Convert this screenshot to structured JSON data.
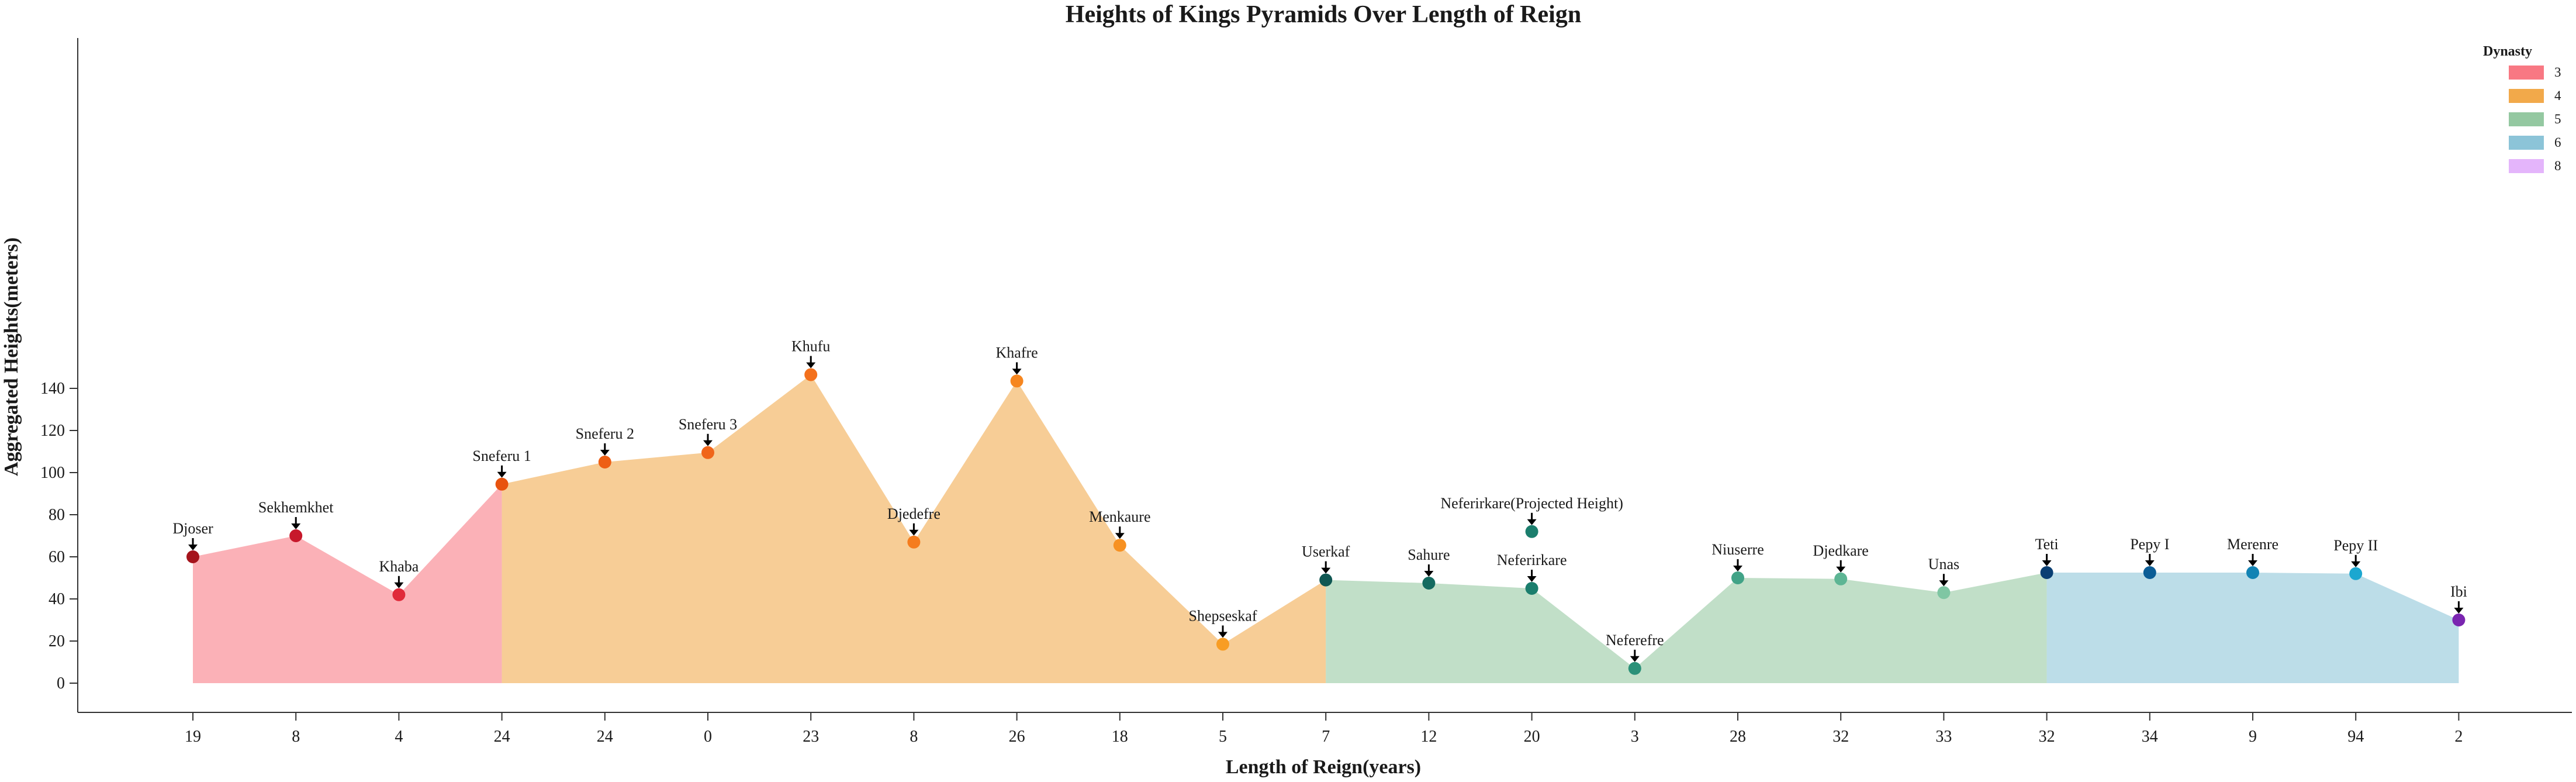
{
  "chart_data": {
    "type": "area",
    "title": "Heights of Kings Pyramids Over Length of Reign",
    "xlabel": "Length of Reign(years)",
    "ylabel": "Aggregated Heights(meters)",
    "ylim": [
      -7,
      155
    ],
    "yticks": [
      0,
      20,
      40,
      60,
      80,
      100,
      120,
      140
    ],
    "grid": false,
    "legend": {
      "title": "Dynasty",
      "placement": "top-right",
      "items": [
        {
          "label": "3",
          "color": "#f87883"
        },
        {
          "label": "4",
          "color": "#f2a94a"
        },
        {
          "label": "5",
          "color": "#94c8a1"
        },
        {
          "label": "6",
          "color": "#8cc4d8"
        },
        {
          "label": "8",
          "color": "#e4b5fb"
        }
      ]
    },
    "points": [
      {
        "name": "Djoser",
        "x": "19",
        "y": 60,
        "dynasty": "3",
        "color": "#a5141c"
      },
      {
        "name": "Sekhemkhet",
        "x": "8",
        "y": 70,
        "dynasty": "3",
        "color": "#c7182b"
      },
      {
        "name": "Khaba",
        "x": "4",
        "y": 42,
        "dynasty": "3",
        "color": "#e02a3a"
      },
      {
        "name": "Sneferu 1",
        "x": "24",
        "y": 94.5,
        "dynasty": "4",
        "color": "#e8530f"
      },
      {
        "name": "Sneferu 2",
        "x": "24",
        "y": 105,
        "dynasty": "4",
        "color": "#ee5f14"
      },
      {
        "name": "Sneferu 3",
        "x": "0",
        "y": 109.5,
        "dynasty": "4",
        "color": "#f0651a"
      },
      {
        "name": "Khufu",
        "x": "23",
        "y": 146.5,
        "dynasty": "4",
        "color": "#f3701c"
      },
      {
        "name": "Djedefre",
        "x": "8",
        "y": 67,
        "dynasty": "4",
        "color": "#f57c1e"
      },
      {
        "name": "Khafre",
        "x": "26",
        "y": 143.5,
        "dynasty": "4",
        "color": "#f6861f"
      },
      {
        "name": "Menkaure",
        "x": "18",
        "y": 65.5,
        "dynasty": "4",
        "color": "#f79122"
      },
      {
        "name": "Shepseskaf",
        "x": "5",
        "y": 18.5,
        "dynasty": "4",
        "color": "#f89d24"
      },
      {
        "name": "Userkaf",
        "x": "7",
        "y": 49,
        "dynasty": "5",
        "color": "#0f5752"
      },
      {
        "name": "Sahure",
        "x": "12",
        "y": 47.5,
        "dynasty": "5",
        "color": "#146b60"
      },
      {
        "name": "Neferirkare(Projected Height)",
        "x": "20",
        "y": 72,
        "dynasty": "5",
        "color": "#1b7e6d"
      },
      {
        "name": "Neferirkare",
        "x": "20",
        "y": 45,
        "dynasty": "5",
        "color": "#1b7e6d"
      },
      {
        "name": "Neferefre",
        "x": "3",
        "y": 7,
        "dynasty": "5",
        "color": "#2b9179"
      },
      {
        "name": "Niuserre",
        "x": "28",
        "y": 50,
        "dynasty": "5",
        "color": "#41a387"
      },
      {
        "name": "Djedkare",
        "x": "32",
        "y": 49.5,
        "dynasty": "5",
        "color": "#5db594"
      },
      {
        "name": "Unas",
        "x": "33",
        "y": 43,
        "dynasty": "5",
        "color": "#7fc6a3"
      },
      {
        "name": "Teti",
        "x": "32",
        "y": 52.5,
        "dynasty": "6",
        "color": "#0a3f73"
      },
      {
        "name": "Pepy I",
        "x": "34",
        "y": 52.5,
        "dynasty": "6",
        "color": "#0b5d96"
      },
      {
        "name": "Merenre",
        "x": "9",
        "y": 52.5,
        "dynasty": "6",
        "color": "#1283b4"
      },
      {
        "name": "Pepy II",
        "x": "94",
        "y": 52,
        "dynasty": "6",
        "color": "#1ba7d0"
      },
      {
        "name": "Ibi",
        "x": "2",
        "y": 30,
        "dynasty": "8",
        "color": "#7a25b0"
      }
    ]
  }
}
